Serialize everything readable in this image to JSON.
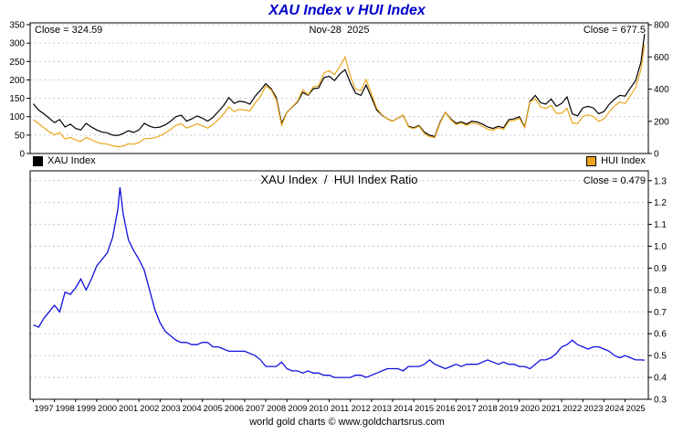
{
  "page": {
    "footer": "world gold charts © www.goldchartsrus.com",
    "title_color": "#0000cc"
  },
  "chart_data": [
    {
      "type": "line",
      "title": "XAU Index v HUI Index",
      "annotations": {
        "left_close": "Close = 324.59",
        "date": "Nov-28  2025",
        "right_close": "Close = 677.5"
      },
      "legend": [
        {
          "label": "XAU Index",
          "color": "#000000"
        },
        {
          "label": "HUI Index",
          "color": "#eba51c"
        }
      ],
      "legend_position": "bottom",
      "grid": true,
      "x_range": [
        1996.85,
        2026.1
      ],
      "left_axis": {
        "ticks": [
          0,
          50,
          100,
          150,
          200,
          250,
          300,
          350
        ],
        "range": [
          0,
          355
        ]
      },
      "right_axis": {
        "ticks": [
          0,
          200,
          400,
          600,
          800
        ],
        "range": [
          0,
          812
        ]
      },
      "series": [
        {
          "name": "XAU Index",
          "axis": "left",
          "color": "#000000",
          "x": [
            1997,
            1997.25,
            1997.5,
            1997.75,
            1998,
            1998.25,
            1998.5,
            1998.75,
            1999,
            1999.25,
            1999.5,
            1999.75,
            2000,
            2000.25,
            2000.5,
            2000.75,
            2001,
            2001.25,
            2001.5,
            2001.75,
            2002,
            2002.25,
            2002.5,
            2002.75,
            2003,
            2003.25,
            2003.5,
            2003.75,
            2004,
            2004.25,
            2004.5,
            2004.75,
            2005,
            2005.25,
            2005.5,
            2005.75,
            2006,
            2006.25,
            2006.5,
            2006.75,
            2007,
            2007.25,
            2007.5,
            2007.75,
            2008,
            2008.25,
            2008.5,
            2008.75,
            2009,
            2009.25,
            2009.5,
            2009.75,
            2010,
            2010.25,
            2010.5,
            2010.75,
            2011,
            2011.25,
            2011.5,
            2011.75,
            2012,
            2012.25,
            2012.5,
            2012.75,
            2013,
            2013.25,
            2013.5,
            2013.75,
            2014,
            2014.25,
            2014.5,
            2014.75,
            2015,
            2015.25,
            2015.5,
            2015.75,
            2016,
            2016.25,
            2016.5,
            2016.75,
            2017,
            2017.25,
            2017.5,
            2017.75,
            2018,
            2018.25,
            2018.5,
            2018.75,
            2019,
            2019.25,
            2019.5,
            2019.75,
            2020,
            2020.25,
            2020.5,
            2020.75,
            2021,
            2021.25,
            2021.5,
            2021.75,
            2022,
            2022.25,
            2022.5,
            2022.75,
            2023,
            2023.25,
            2023.5,
            2023.75,
            2024,
            2024.25,
            2024.5,
            2024.75,
            2025,
            2025.25,
            2025.5,
            2025.75,
            2025.92
          ],
          "y": [
            135,
            118,
            108,
            96,
            84,
            92,
            72,
            80,
            68,
            64,
            82,
            72,
            64,
            58,
            56,
            50,
            49,
            54,
            62,
            57,
            64,
            82,
            74,
            70,
            72,
            78,
            88,
            100,
            104,
            88,
            94,
            102,
            96,
            88,
            98,
            114,
            130,
            152,
            136,
            142,
            140,
            134,
            156,
            172,
            190,
            176,
            152,
            82,
            112,
            126,
            140,
            166,
            158,
            176,
            178,
            206,
            210,
            198,
            216,
            228,
            192,
            164,
            158,
            186,
            152,
            118,
            104,
            94,
            88,
            96,
            104,
            74,
            70,
            76,
            58,
            50,
            46,
            86,
            112,
            94,
            82,
            86,
            80,
            88,
            86,
            80,
            72,
            68,
            74,
            70,
            92,
            94,
            100,
            72,
            142,
            158,
            138,
            134,
            148,
            128,
            136,
            154,
            108,
            102,
            124,
            128,
            124,
            108,
            114,
            134,
            148,
            158,
            156,
            178,
            198,
            248,
            324.59
          ]
        },
        {
          "name": "HUI Index",
          "axis": "right",
          "color": "#eba51c",
          "x": [
            1997,
            1997.25,
            1997.5,
            1997.75,
            1998,
            1998.25,
            1998.5,
            1998.75,
            1999,
            1999.25,
            1999.5,
            1999.75,
            2000,
            2000.25,
            2000.5,
            2000.75,
            2001,
            2001.25,
            2001.5,
            2001.75,
            2002,
            2002.25,
            2002.5,
            2002.75,
            2003,
            2003.25,
            2003.5,
            2003.75,
            2004,
            2004.25,
            2004.5,
            2004.75,
            2005,
            2005.25,
            2005.5,
            2005.75,
            2006,
            2006.25,
            2006.5,
            2006.75,
            2007,
            2007.25,
            2007.5,
            2007.75,
            2008,
            2008.25,
            2008.5,
            2008.75,
            2009,
            2009.25,
            2009.5,
            2009.75,
            2010,
            2010.25,
            2010.5,
            2010.75,
            2011,
            2011.25,
            2011.5,
            2011.75,
            2012,
            2012.25,
            2012.5,
            2012.75,
            2013,
            2013.25,
            2013.5,
            2013.75,
            2014,
            2014.25,
            2014.5,
            2014.75,
            2015,
            2015.25,
            2015.5,
            2015.75,
            2016,
            2016.25,
            2016.5,
            2016.75,
            2017,
            2017.25,
            2017.5,
            2017.75,
            2018,
            2018.25,
            2018.5,
            2018.75,
            2019,
            2019.25,
            2019.5,
            2019.75,
            2020,
            2020.25,
            2020.5,
            2020.75,
            2021,
            2021.25,
            2021.5,
            2021.75,
            2022,
            2022.25,
            2022.5,
            2022.75,
            2023,
            2023.25,
            2023.5,
            2023.75,
            2024,
            2024.25,
            2024.5,
            2024.75,
            2025,
            2025.25,
            2025.5,
            2025.75,
            2025.92
          ],
          "y": [
            210,
            185,
            160,
            135,
            115,
            130,
            90,
            100,
            84,
            75,
            100,
            85,
            70,
            62,
            58,
            48,
            42,
            46,
            60,
            58,
            68,
            92,
            93,
            98,
            110,
            128,
            150,
            175,
            185,
            158,
            170,
            185,
            172,
            158,
            180,
            210,
            245,
            290,
            260,
            275,
            270,
            265,
            315,
            355,
            420,
            395,
            335,
            175,
            255,
            290,
            325,
            395,
            365,
            415,
            420,
            500,
            515,
            490,
            540,
            600,
            480,
            400,
            390,
            460,
            370,
            280,
            240,
            215,
            200,
            220,
            240,
            165,
            155,
            170,
            125,
            105,
            100,
            190,
            255,
            210,
            180,
            190,
            175,
            190,
            185,
            170,
            150,
            145,
            160,
            150,
            200,
            205,
            220,
            160,
            320,
            340,
            290,
            280,
            300,
            250,
            250,
            280,
            190,
            185,
            230,
            240,
            230,
            200,
            215,
            260,
            295,
            320,
            310,
            360,
            410,
            520,
            677.5
          ]
        }
      ]
    },
    {
      "type": "line",
      "title": "XAU Index  /  HUI Index Ratio",
      "annotations": {
        "right_close": "Close = 0.479"
      },
      "grid": true,
      "right_axis": {
        "ticks": [
          0.3,
          0.4,
          0.5,
          0.6,
          0.7,
          0.8,
          0.9,
          1.0,
          1.1,
          1.2,
          1.3
        ],
        "range": [
          0.3,
          1.345
        ]
      },
      "x_ticks": [
        1997,
        1998,
        1999,
        2000,
        2001,
        2002,
        2003,
        2004,
        2005,
        2006,
        2007,
        2008,
        2009,
        2010,
        2011,
        2012,
        2013,
        2014,
        2015,
        2016,
        2017,
        2018,
        2019,
        2020,
        2021,
        2022,
        2023,
        2024,
        2025
      ],
      "series": [
        {
          "name": "XAU/HUI Ratio",
          "axis": "right",
          "color": "#1010dd",
          "x": [
            1997,
            1997.25,
            1997.5,
            1997.75,
            1998,
            1998.25,
            1998.5,
            1998.75,
            1999,
            1999.25,
            1999.5,
            1999.75,
            2000,
            2000.25,
            2000.5,
            2000.75,
            2001,
            2001.1,
            2001.25,
            2001.5,
            2001.75,
            2002,
            2002.25,
            2002.5,
            2002.75,
            2003,
            2003.25,
            2003.5,
            2003.75,
            2004,
            2004.25,
            2004.5,
            2004.75,
            2005,
            2005.25,
            2005.5,
            2005.75,
            2006,
            2006.25,
            2006.5,
            2006.75,
            2007,
            2007.25,
            2007.5,
            2007.75,
            2008,
            2008.25,
            2008.5,
            2008.75,
            2009,
            2009.25,
            2009.5,
            2009.75,
            2010,
            2010.25,
            2010.5,
            2010.75,
            2011,
            2011.25,
            2011.5,
            2011.75,
            2012,
            2012.25,
            2012.5,
            2012.75,
            2013,
            2013.25,
            2013.5,
            2013.75,
            2014,
            2014.25,
            2014.5,
            2014.75,
            2015,
            2015.25,
            2015.5,
            2015.75,
            2016,
            2016.25,
            2016.5,
            2016.75,
            2017,
            2017.25,
            2017.5,
            2017.75,
            2018,
            2018.25,
            2018.5,
            2018.75,
            2019,
            2019.25,
            2019.5,
            2019.75,
            2020,
            2020.25,
            2020.5,
            2020.75,
            2021,
            2021.25,
            2021.5,
            2021.75,
            2022,
            2022.25,
            2022.5,
            2022.75,
            2023,
            2023.25,
            2023.5,
            2023.75,
            2024,
            2024.25,
            2024.5,
            2024.75,
            2025,
            2025.25,
            2025.5,
            2025.75,
            2025.92
          ],
          "y": [
            0.64,
            0.63,
            0.67,
            0.7,
            0.73,
            0.7,
            0.79,
            0.78,
            0.81,
            0.85,
            0.8,
            0.85,
            0.91,
            0.94,
            0.97,
            1.04,
            1.17,
            1.27,
            1.15,
            1.03,
            0.98,
            0.94,
            0.89,
            0.8,
            0.71,
            0.65,
            0.61,
            0.59,
            0.57,
            0.56,
            0.56,
            0.55,
            0.55,
            0.56,
            0.56,
            0.54,
            0.54,
            0.53,
            0.52,
            0.52,
            0.52,
            0.52,
            0.51,
            0.5,
            0.48,
            0.45,
            0.45,
            0.45,
            0.47,
            0.44,
            0.43,
            0.43,
            0.42,
            0.43,
            0.42,
            0.42,
            0.41,
            0.41,
            0.4,
            0.4,
            0.4,
            0.4,
            0.41,
            0.41,
            0.4,
            0.41,
            0.42,
            0.43,
            0.44,
            0.44,
            0.44,
            0.43,
            0.45,
            0.45,
            0.45,
            0.46,
            0.48,
            0.46,
            0.45,
            0.44,
            0.45,
            0.46,
            0.45,
            0.46,
            0.46,
            0.46,
            0.47,
            0.48,
            0.47,
            0.46,
            0.47,
            0.46,
            0.46,
            0.45,
            0.45,
            0.44,
            0.46,
            0.48,
            0.48,
            0.49,
            0.51,
            0.54,
            0.55,
            0.57,
            0.55,
            0.54,
            0.53,
            0.54,
            0.54,
            0.53,
            0.52,
            0.5,
            0.49,
            0.5,
            0.49,
            0.48,
            0.48,
            0.479
          ]
        }
      ]
    }
  ]
}
